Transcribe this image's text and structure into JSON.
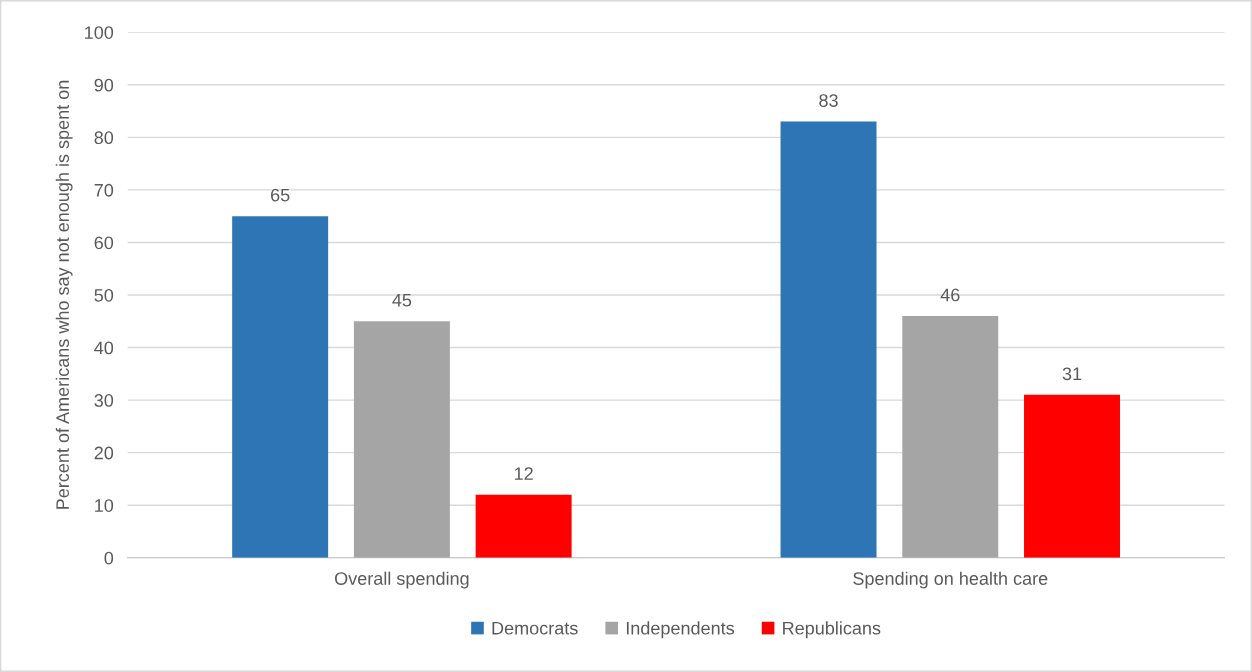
{
  "chart_data": {
    "type": "bar",
    "ylabel": "Percent of Americans who say not enough is spent on",
    "categories": [
      "Overall spending",
      "Spending on health care"
    ],
    "series": [
      {
        "name": "Democrats",
        "color": "#2e75b6",
        "values": [
          65,
          83
        ]
      },
      {
        "name": "Independents",
        "color": "#a5a5a5",
        "values": [
          45,
          46
        ]
      },
      {
        "name": "Republicans",
        "color": "#ff0000",
        "values": [
          12,
          31
        ]
      }
    ],
    "ylim": [
      0,
      100
    ],
    "yticks": [
      0,
      10,
      20,
      30,
      40,
      50,
      60,
      70,
      80,
      90,
      100
    ],
    "grid": "y",
    "legend": "bottom",
    "data_labels": true
  }
}
